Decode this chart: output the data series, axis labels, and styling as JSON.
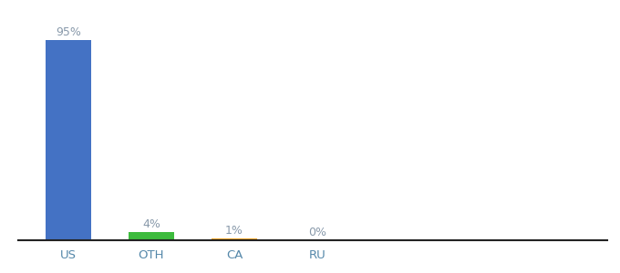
{
  "categories": [
    "US",
    "OTH",
    "CA",
    "RU"
  ],
  "values": [
    95,
    4,
    1,
    0
  ],
  "bar_colors": [
    "#4472c4",
    "#3dbb3d",
    "#f5a623",
    "#c0c0c0"
  ],
  "label_color": "#8899aa",
  "xlabel_color": "#5588aa",
  "ylim": [
    0,
    105
  ],
  "background_color": "#ffffff",
  "bar_width": 0.55,
  "figsize": [
    6.8,
    3.0
  ],
  "dpi": 100
}
